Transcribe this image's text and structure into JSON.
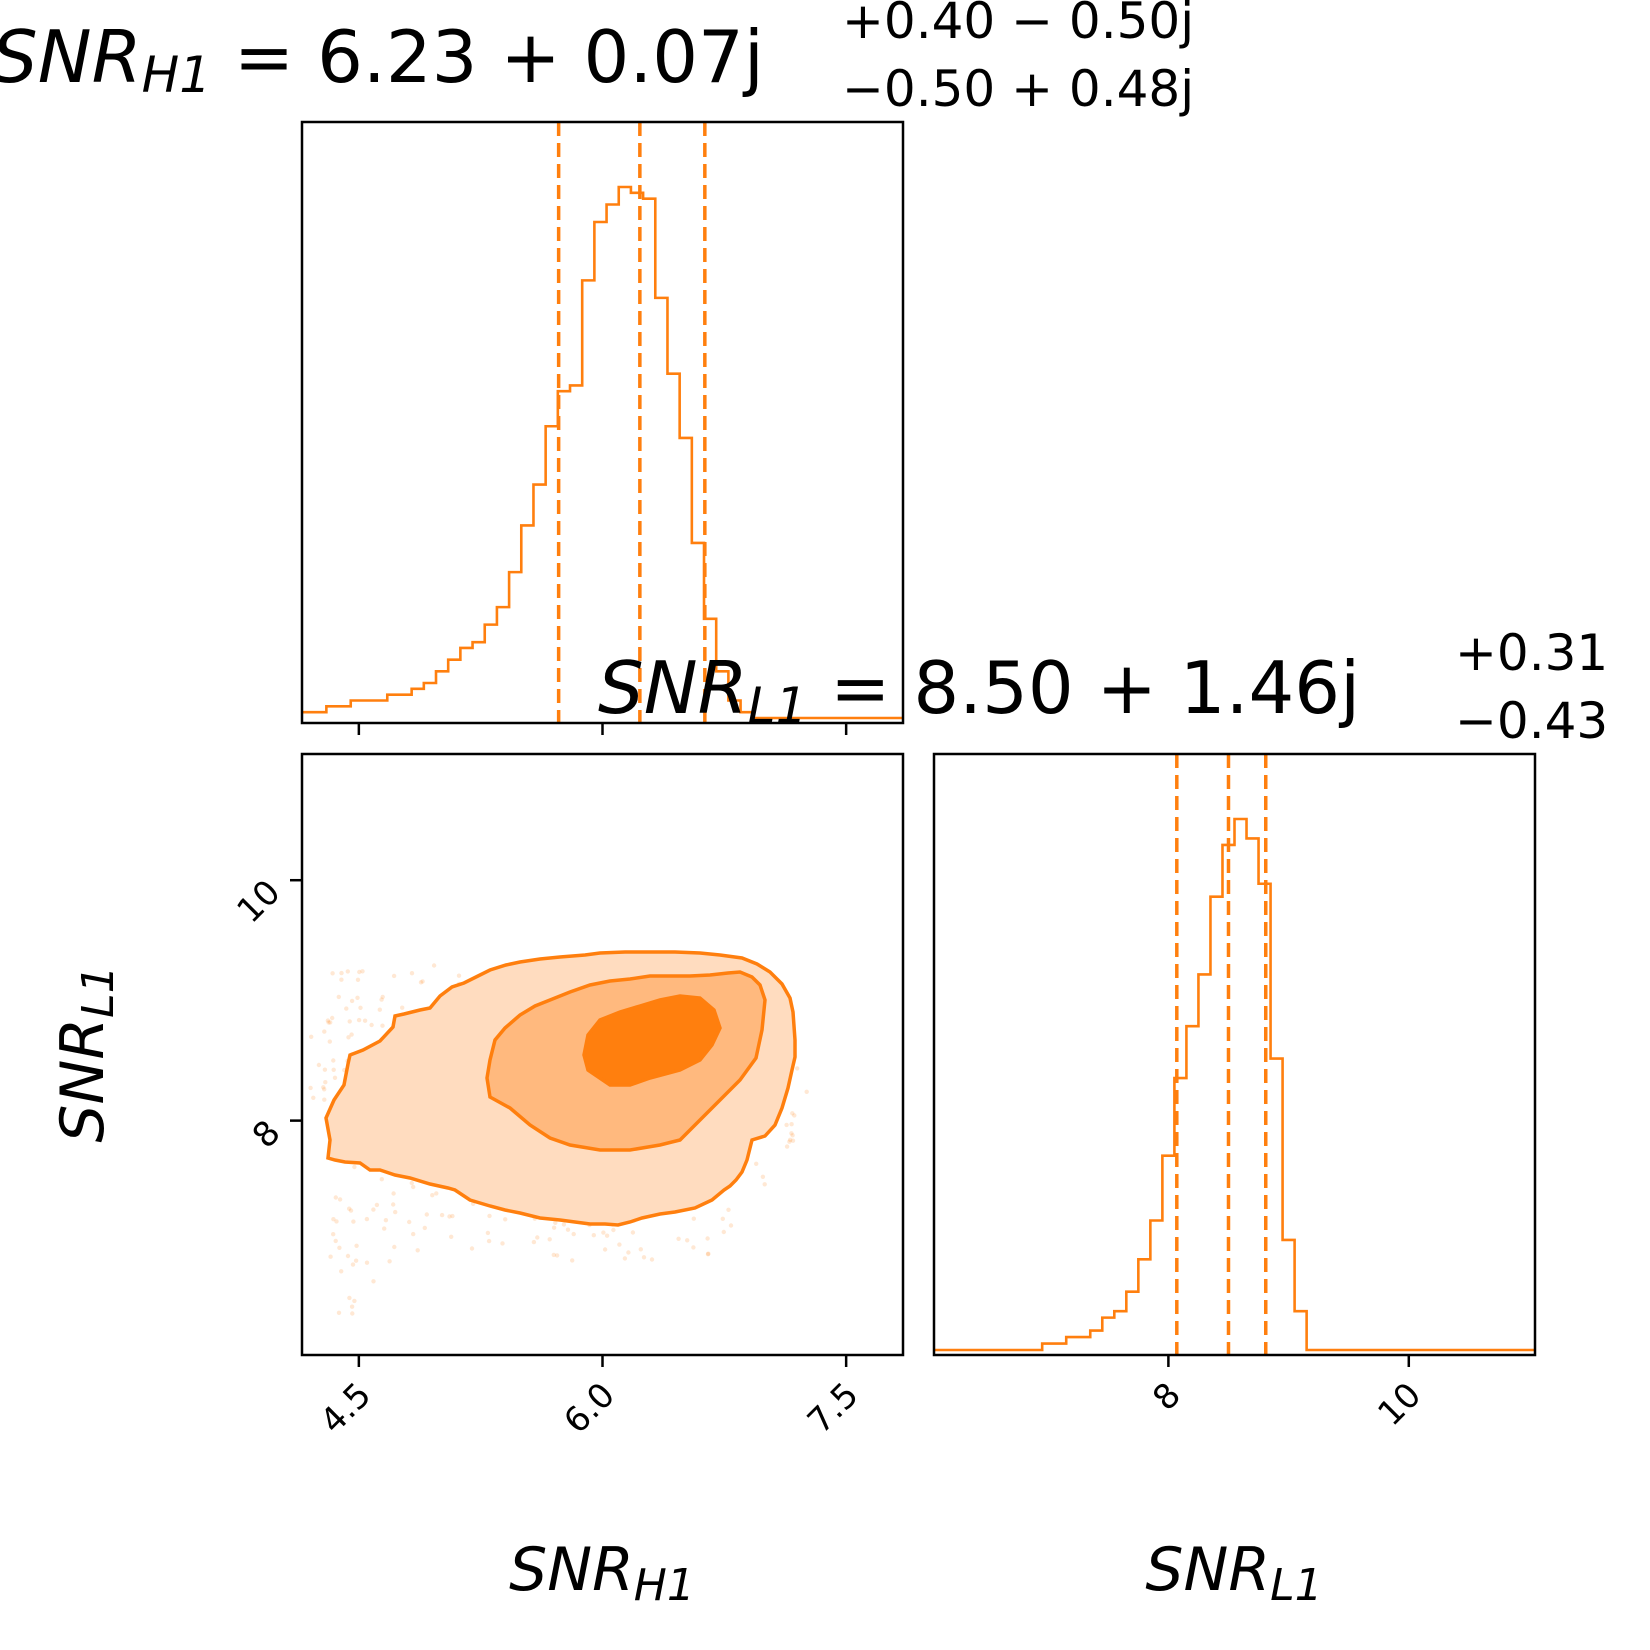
{
  "colors": {
    "accent": "#ff7f0e",
    "fill_light": "#ffdcbf",
    "fill_mid": "#ffb97e",
    "fill_dark": "#ff7f0e",
    "axis": "#000000",
    "background": "#ffffff"
  },
  "chart_data": [
    {
      "type": "histogram",
      "panel": "top-left",
      "parameter": "SNR_H1",
      "title": {
        "lead": "SNR",
        "sub": "H1",
        "expr": " = 6.23 + 0.07j",
        "sup": "+0.40 − 0.50j",
        "inf": "−0.50 + 0.48j"
      },
      "xlim": [
        4.15,
        7.85
      ],
      "x_ticks": [
        4.5,
        6.0,
        7.5
      ],
      "bins": [
        4.15,
        4.225,
        4.3,
        4.375,
        4.45,
        4.525,
        4.6,
        4.675,
        4.75,
        4.825,
        4.9,
        4.975,
        5.05,
        5.125,
        5.2,
        5.275,
        5.35,
        5.425,
        5.5,
        5.575,
        5.65,
        5.725,
        5.8,
        5.875,
        5.95,
        6.025,
        6.1,
        6.175,
        6.25,
        6.325,
        6.4,
        6.475,
        6.55,
        6.625,
        6.7,
        6.775,
        6.85,
        6.925,
        7.0,
        7.075,
        7.15,
        7.225,
        7.3,
        7.375,
        7.45,
        7.525,
        7.6,
        7.675,
        7.75,
        7.85
      ],
      "counts": [
        1,
        1,
        2,
        2,
        3,
        3,
        3,
        4,
        4,
        5,
        6,
        8,
        10,
        12,
        13,
        16,
        19,
        25,
        33,
        40,
        50,
        56,
        57,
        75,
        85,
        88,
        91,
        90,
        89,
        72,
        59,
        48,
        30,
        17,
        8,
        3,
        1,
        0,
        0,
        0,
        0,
        0,
        0,
        0,
        0,
        0,
        0,
        0,
        0
      ],
      "quantiles": [
        5.73,
        6.23,
        6.63
      ]
    },
    {
      "type": "scatter-contour",
      "panel": "bottom-left",
      "x_parameter": "SNR_H1",
      "y_parameter": "SNR_L1",
      "xlabel": {
        "lead": "SNR",
        "sub": "H1"
      },
      "ylabel": {
        "lead": "SNR",
        "sub": "L1"
      },
      "xlim": [
        4.15,
        7.85
      ],
      "ylim": [
        6.05,
        11.05
      ],
      "x_ticks": [
        4.5,
        6.0,
        7.5
      ],
      "x_tick_labels": [
        "4.5",
        "6.0",
        "7.5"
      ],
      "y_ticks": [
        8,
        10
      ],
      "y_tick_labels": [
        "8",
        "10"
      ],
      "contour_levels": [
        "outer",
        "middle",
        "inner"
      ]
    },
    {
      "type": "histogram",
      "panel": "bottom-right",
      "parameter": "SNR_L1",
      "title": {
        "lead": "SNR",
        "sub": "L1",
        "expr": " = 8.50 + 1.46j",
        "sup": "+0.31",
        "inf": "−0.43"
      },
      "xlabel": {
        "lead": "SNR",
        "sub": "L1"
      },
      "xlim": [
        6.05,
        11.05
      ],
      "x_ticks": [
        8,
        10
      ],
      "x_tick_labels": [
        "8",
        "10"
      ],
      "bins": [
        6.05,
        6.15,
        6.25,
        6.35,
        6.45,
        6.55,
        6.65,
        6.75,
        6.85,
        6.95,
        7.05,
        7.15,
        7.25,
        7.35,
        7.45,
        7.55,
        7.65,
        7.75,
        7.85,
        7.95,
        8.05,
        8.15,
        8.25,
        8.35,
        8.45,
        8.55,
        8.65,
        8.75,
        8.85,
        8.95,
        9.05,
        9.15,
        9.25,
        9.35,
        9.45,
        9.55,
        9.65,
        9.75,
        9.85,
        9.95,
        10.05,
        10.15,
        10.25,
        10.35,
        10.45,
        10.55,
        10.65,
        10.75,
        10.85,
        10.95,
        11.05
      ],
      "counts": [
        0,
        0,
        0,
        0,
        0,
        0,
        0,
        0,
        0,
        1,
        1,
        2,
        2,
        3,
        5,
        6,
        9,
        14,
        20,
        30,
        42,
        50,
        58,
        70,
        78,
        82,
        79,
        72,
        45,
        17,
        6,
        0,
        0,
        0,
        0,
        0,
        0,
        0,
        0,
        0,
        0,
        0,
        0,
        0,
        0,
        0,
        0,
        0,
        0,
        0
      ],
      "quantiles": [
        8.07,
        8.5,
        8.81
      ]
    }
  ]
}
